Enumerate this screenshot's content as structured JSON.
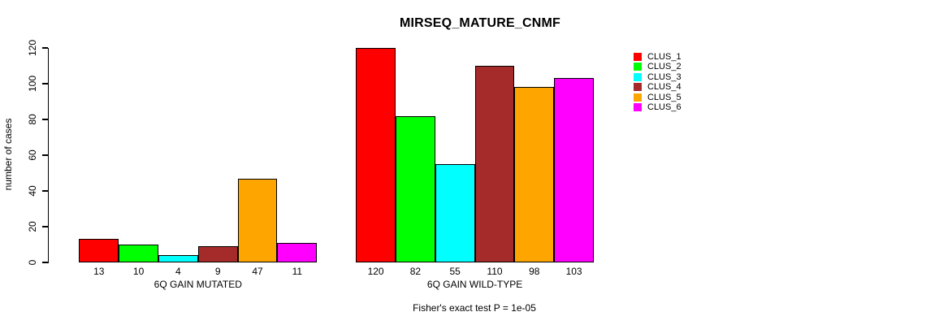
{
  "chart_data": {
    "type": "bar",
    "title": "MIRSEQ_MATURE_CNMF",
    "ylabel": "number of cases",
    "xlabel": "",
    "annotation": "Fisher's exact test P = 1e-05",
    "ylim": [
      0,
      120
    ],
    "yticks": [
      0,
      20,
      40,
      60,
      80,
      100,
      120
    ],
    "grid": false,
    "legend_position": "right-outside",
    "background_color": "#ffffff",
    "bar_border_color": "#000000",
    "series_names": [
      "CLUS_1",
      "CLUS_2",
      "CLUS_3",
      "CLUS_4",
      "CLUS_5",
      "CLUS_6"
    ],
    "series_colors": [
      "#ff0000",
      "#00ff00",
      "#00ffff",
      "#a52a2a",
      "#ffa500",
      "#ff00ff"
    ],
    "groups": [
      {
        "label": "6Q GAIN MUTATED",
        "values": [
          13,
          10,
          4,
          9,
          47,
          11
        ]
      },
      {
        "label": "6Q GAIN WILD-TYPE",
        "values": [
          120,
          82,
          55,
          110,
          98,
          103
        ]
      }
    ],
    "series": [
      {
        "name": "CLUS_1",
        "color": "#ff0000",
        "values": [
          13,
          120
        ]
      },
      {
        "name": "CLUS_2",
        "color": "#00ff00",
        "values": [
          10,
          82
        ]
      },
      {
        "name": "CLUS_3",
        "color": "#00ffff",
        "values": [
          4,
          55
        ]
      },
      {
        "name": "CLUS_4",
        "color": "#a52a2a",
        "values": [
          9,
          110
        ]
      },
      {
        "name": "CLUS_5",
        "color": "#ffa500",
        "values": [
          47,
          98
        ]
      },
      {
        "name": "CLUS_6",
        "color": "#ff00ff",
        "values": [
          11,
          103
        ]
      }
    ]
  }
}
